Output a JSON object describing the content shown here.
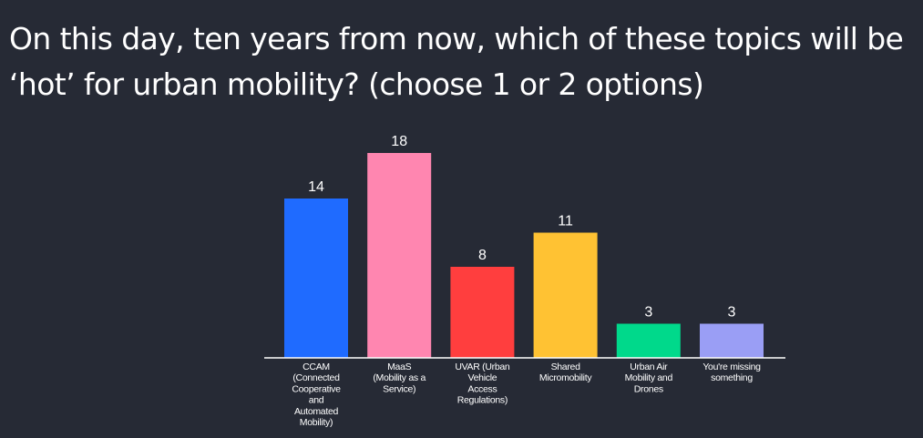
{
  "question": "On this day, ten years from now, which of these topics will be ‘hot’ for urban mobility? (choose 1 or 2 options)",
  "chart_data": {
    "type": "bar",
    "categories": [
      "CCAM (Connected Cooperative and Automated Mobility)",
      "MaaS (Mobility as a Service)",
      "UVAR (Urban Vehicle Access Regulations)",
      "Shared Micromobility",
      "Urban Air Mobility and Drones",
      "You're missing something"
    ],
    "category_label_lines": [
      [
        "CCAM",
        "(Connected",
        "Cooperative",
        "and",
        "Automated",
        "Mobility)"
      ],
      [
        "MaaS",
        "(Mobility as a",
        "Service)"
      ],
      [
        "UVAR (Urban",
        "Vehicle",
        "Access",
        "Regulations)"
      ],
      [
        "Shared",
        "Micromobility"
      ],
      [
        "Urban Air",
        "Mobility and",
        "Drones"
      ],
      [
        "You're missing",
        "something"
      ]
    ],
    "values": [
      14,
      18,
      8,
      11,
      3,
      3
    ],
    "colors": [
      "#1f6bff",
      "#ff86b0",
      "#ff3e3e",
      "#ffc233",
      "#00d98b",
      "#9a9ef5"
    ],
    "title": "",
    "xlabel": "",
    "ylabel": "",
    "ylim": [
      0,
      18
    ],
    "grid": false,
    "legend": "none"
  }
}
